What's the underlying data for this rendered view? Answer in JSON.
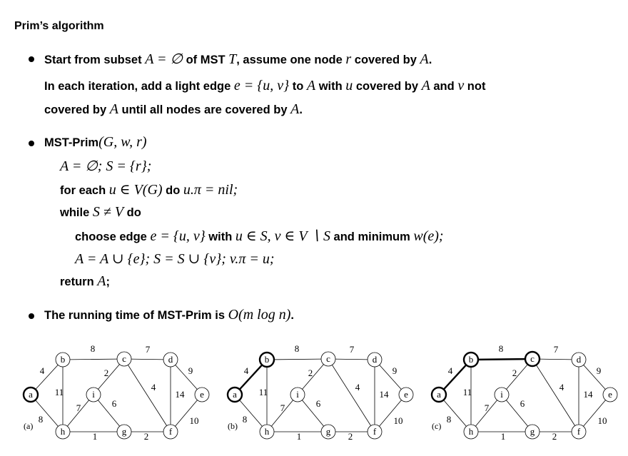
{
  "title": "Prim’s algorithm",
  "bullet1": {
    "line1": {
      "t1": "Start from subset ",
      "m1": "A = ∅",
      "t2": " of MST ",
      "m2": "T",
      "t3": ", assume one node ",
      "m3": "r",
      "t4": " covered by ",
      "m4": "A",
      "t5": "."
    },
    "line2": {
      "t1": "In each iteration, add a light edge ",
      "m1": "e = {u, v}",
      "t2": " to ",
      "m2": "A",
      "t3": " with ",
      "m3": "u",
      "t4": " covered by ",
      "m4": "A",
      "t5": " and ",
      "m5": "v",
      "t6": " not"
    },
    "line3": {
      "t1": "covered by ",
      "m1": "A",
      "t2": " until all nodes are covered by ",
      "m2": "A",
      "t3": "."
    }
  },
  "bullet2": {
    "header": {
      "t1": "MST-Prim",
      "m1": "(G, w, r)"
    },
    "l1": {
      "m1": "A = ∅; S = {r};"
    },
    "l2": {
      "t1": "for each ",
      "m1": "u ∈ V(G)",
      "t2": " do ",
      "m2": "u.π = nil;"
    },
    "l3": {
      "t1": "while ",
      "m1": "S ≠ V",
      "t2": " do"
    },
    "l4": {
      "t1": "choose edge ",
      "m1": "e = {u, v}",
      "t2": " with ",
      "m2": "u ∈ S, v ∈ V ∖ S",
      "t3": " and minimum ",
      "m3": "w(e);"
    },
    "l5": {
      "m1": "A = A ∪ {e}; S = S ∪ {v}; v.π = u;"
    },
    "l6": {
      "t1": "return ",
      "m1": "A",
      "t2": ";"
    }
  },
  "bullet3": {
    "t1": "The running time of MST-Prim is ",
    "m1": "O(m log n)",
    "t2": "."
  },
  "graphs": [
    {
      "panel_label": "(a)",
      "highlighted_nodes": [
        "a"
      ],
      "highlighted_edges": []
    },
    {
      "panel_label": "(b)",
      "highlighted_nodes": [
        "a",
        "b"
      ],
      "highlighted_edges": [
        "a-b"
      ]
    },
    {
      "panel_label": "(c)",
      "highlighted_nodes": [
        "a",
        "b",
        "c"
      ],
      "highlighted_edges": [
        "a-b",
        "b-c"
      ]
    }
  ],
  "graph_nodes": [
    "a",
    "b",
    "c",
    "d",
    "e",
    "f",
    "g",
    "h",
    "i"
  ],
  "graph_edges": [
    {
      "id": "a-b",
      "w": "4"
    },
    {
      "id": "a-h",
      "w": "8"
    },
    {
      "id": "b-c",
      "w": "8"
    },
    {
      "id": "b-h",
      "w": "11"
    },
    {
      "id": "c-d",
      "w": "7"
    },
    {
      "id": "c-i",
      "w": "2"
    },
    {
      "id": "c-f",
      "w": "4"
    },
    {
      "id": "d-e",
      "w": "9"
    },
    {
      "id": "d-f",
      "w": "14"
    },
    {
      "id": "e-f",
      "w": "10"
    },
    {
      "id": "f-g",
      "w": "2"
    },
    {
      "id": "g-h",
      "w": "1"
    },
    {
      "id": "g-i",
      "w": "6"
    },
    {
      "id": "h-i",
      "w": "7"
    }
  ]
}
